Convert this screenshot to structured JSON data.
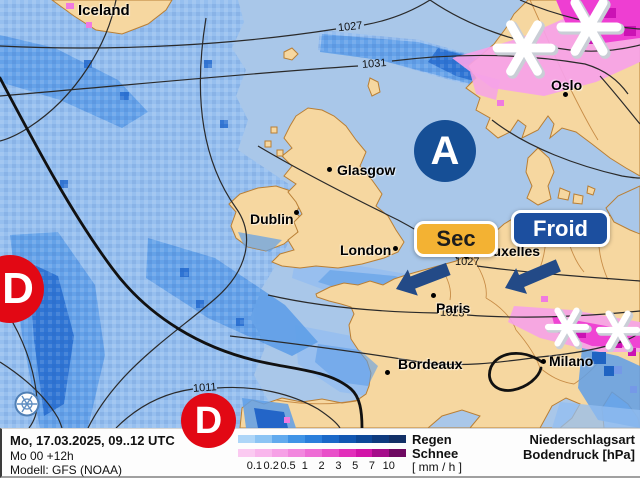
{
  "map": {
    "region_label": "Iceland",
    "cities": [
      {
        "name": "Iceland"
      },
      {
        "name": "Oslo"
      },
      {
        "name": "Glasgow"
      },
      {
        "name": "Dublin"
      },
      {
        "name": "London"
      },
      {
        "name": "Bruxelles"
      },
      {
        "name": "Paris"
      },
      {
        "name": "Bordeaux"
      },
      {
        "name": "Milano"
      }
    ],
    "isobar_labels": [
      "1027",
      "1031",
      "1027",
      "1023",
      "1011"
    ],
    "pressure_centers": [
      {
        "letter": "A",
        "type": "high"
      },
      {
        "letter": "D",
        "type": "low"
      },
      {
        "letter": "D",
        "type": "low"
      }
    ],
    "annotations": {
      "dry": "Sec",
      "cold": "Froid"
    },
    "colors": {
      "sea": "#a9c7e9",
      "land": "#f6d7a0",
      "coast": "#b97f35",
      "high_badge": "#164f96",
      "low_badge": "#e20814",
      "dry_box": "#f3b233",
      "cold_box": "#1c4f9f",
      "arrow": "#234a87",
      "rain_light": "#93bdf0",
      "rain_medium": "#5f9fe8",
      "rain_dark": "#2a70d2",
      "snow_light": "#f6a2e8",
      "snow_bright": "#ee3ed2"
    }
  },
  "legend": {
    "rain_label": "Regen",
    "snow_label": "Schnee",
    "unit_label": "[ mm / h ]",
    "scale_values": [
      "0.1",
      "0.2",
      "0.5",
      "1",
      "2",
      "3",
      "5",
      "7",
      "10"
    ],
    "rain_colors": [
      "#aed6f8",
      "#8cc4f4",
      "#62aaee",
      "#3f93e6",
      "#2a7edb",
      "#1a68c8",
      "#1257b2",
      "#0d4898",
      "#0e3a7e",
      "#123066"
    ],
    "snow_colors": [
      "#fbcaf1",
      "#f9b6ec",
      "#f6a0e6",
      "#f287de",
      "#ee6cd5",
      "#e94fc9",
      "#e22fba",
      "#d214a8",
      "#a50c8a",
      "#6f0a62"
    ]
  },
  "footer": {
    "date_line": "Mo, 17.03.2025, 09..12 UTC",
    "run_line": "Mo 00 +12h",
    "model_line": "Modell: GFS (NOAA)",
    "type_label": "Niederschlagsart",
    "pressure_label": "Bodendruck [hPa]"
  }
}
